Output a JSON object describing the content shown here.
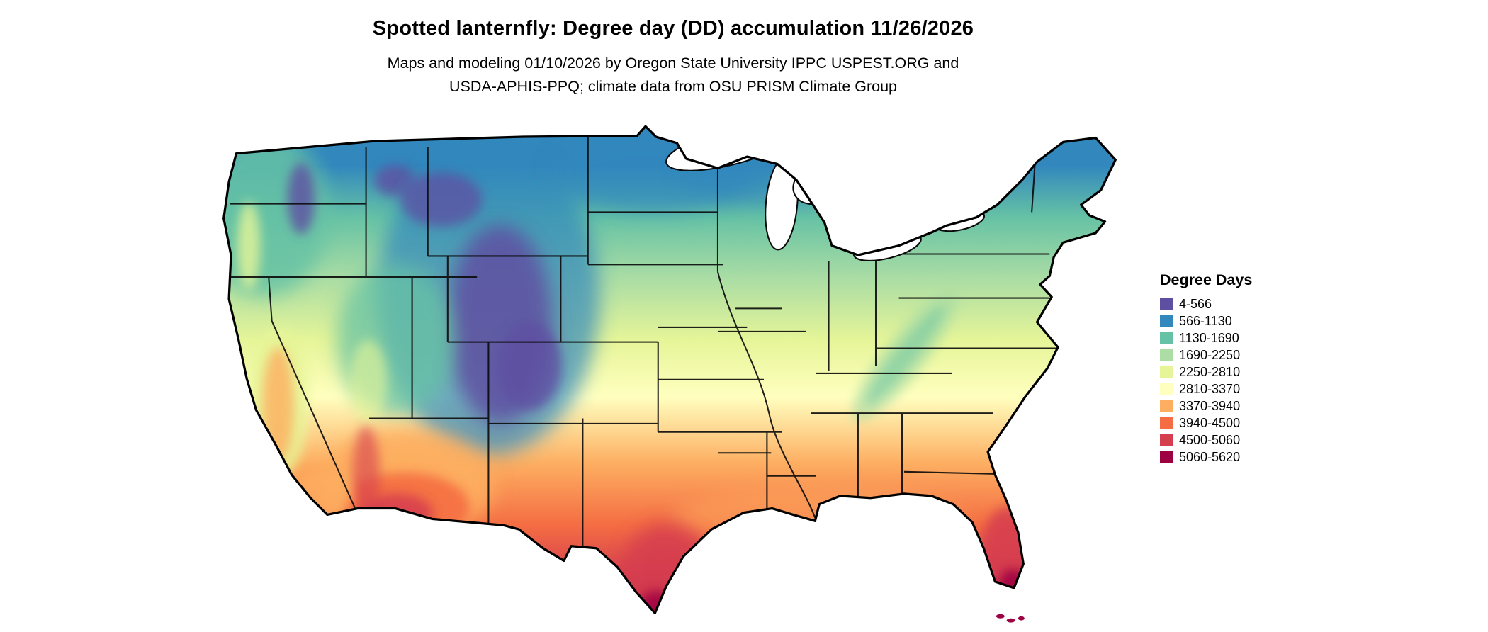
{
  "page": {
    "background": "#ffffff"
  },
  "header": {
    "title": "Spotted lanternfly: Degree day (DD) accumulation 11/26/2026",
    "subtitle_line1": "Maps and modeling 01/10/2026 by Oregon State University IPPC USPEST.ORG and",
    "subtitle_line2": "USDA-APHIS-PPQ; climate data from OSU PRISM Climate Group"
  },
  "legend": {
    "title": "Degree Days",
    "items": [
      {
        "label": "4-566",
        "color": "#5e4fa2"
      },
      {
        "label": "566-1130",
        "color": "#3288bd"
      },
      {
        "label": "1130-1690",
        "color": "#66c2a5"
      },
      {
        "label": "1690-2250",
        "color": "#abdda4"
      },
      {
        "label": "2250-2810",
        "color": "#e6f598"
      },
      {
        "label": "2810-3370",
        "color": "#ffffbf"
      },
      {
        "label": "3370-3940",
        "color": "#fdae61"
      },
      {
        "label": "3940-4500",
        "color": "#f46d43"
      },
      {
        "label": "4500-5060",
        "color": "#d53e4f"
      },
      {
        "label": "5060-5620",
        "color": "#9e0142"
      }
    ]
  },
  "chart_data": {
    "type": "heatmap",
    "subtype": "choropleth-map",
    "region": "Continental United States",
    "title": "Spotted lanternfly: Degree day (DD) accumulation 11/26/2026",
    "legend_title": "Degree Days",
    "unit": "degree days (DD)",
    "value_range": [
      4,
      5620
    ],
    "bin_edges": [
      4,
      566,
      1130,
      1690,
      2250,
      2810,
      3370,
      3940,
      4500,
      5060,
      5620
    ],
    "bins": [
      {
        "range": "4-566",
        "min": 4,
        "max": 566,
        "color": "#5e4fa2"
      },
      {
        "range": "566-1130",
        "min": 566,
        "max": 1130,
        "color": "#3288bd"
      },
      {
        "range": "1130-1690",
        "min": 1130,
        "max": 1690,
        "color": "#66c2a5"
      },
      {
        "range": "1690-2250",
        "min": 1690,
        "max": 2250,
        "color": "#abdda4"
      },
      {
        "range": "2250-2810",
        "min": 2250,
        "max": 2810,
        "color": "#e6f598"
      },
      {
        "range": "2810-3370",
        "min": 2810,
        "max": 3370,
        "color": "#ffffbf"
      },
      {
        "range": "3370-3940",
        "min": 3370,
        "max": 3940,
        "color": "#fdae61"
      },
      {
        "range": "3940-4500",
        "min": 3940,
        "max": 4500,
        "color": "#f46d43"
      },
      {
        "range": "4500-5060",
        "min": 4500,
        "max": 5060,
        "color": "#d53e4f"
      },
      {
        "range": "5060-5620",
        "min": 5060,
        "max": 5620,
        "color": "#9e0142"
      }
    ],
    "palette": [
      "#5e4fa2",
      "#3288bd",
      "#66c2a5",
      "#abdda4",
      "#e6f598",
      "#ffffbf",
      "#fdae61",
      "#f46d43",
      "#d53e4f",
      "#9e0142"
    ],
    "legend_position": "right",
    "spatial_pattern": [
      "Lowest accumulation (purple/blue) over the northern Rockies, high-elevation interior West, and northern-border states",
      "Intermediate accumulation (teal/green/yellow) across the Midwest, Northeast, and mid-Atlantic with a cool band along the Appalachians",
      "Highest accumulation (orange/red/maroon) over southern Arizona deserts, southern Texas, the Gulf Coast, and peninsular Florida"
    ]
  }
}
